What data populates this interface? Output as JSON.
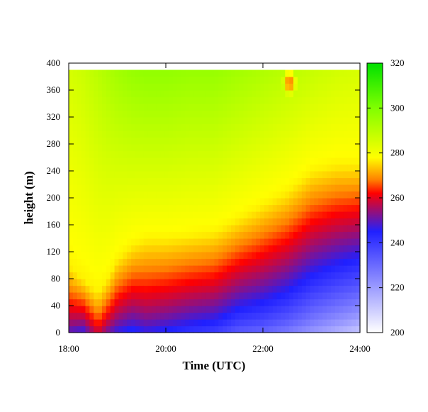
{
  "chart_data": {
    "type": "heatmap",
    "title": "",
    "xlabel": "Time (UTC)",
    "ylabel": "height (m)",
    "x_unit": "hours",
    "xlim": [
      18,
      24
    ],
    "ylim": [
      0,
      400
    ],
    "x_ticks": [
      {
        "value": 18,
        "label": "18:00"
      },
      {
        "value": 20,
        "label": "20:00"
      },
      {
        "value": 22,
        "label": "22:00"
      },
      {
        "value": 24,
        "label": "24:00"
      }
    ],
    "y_ticks": [
      0,
      40,
      80,
      120,
      160,
      200,
      240,
      280,
      320,
      360,
      400
    ],
    "colorbar": {
      "range": [
        200,
        320
      ],
      "ticks": [
        200,
        220,
        240,
        260,
        280,
        300,
        320
      ],
      "colormap": [
        {
          "value": 200,
          "color": "#ffffff"
        },
        {
          "value": 245,
          "color": "#2020ff"
        },
        {
          "value": 262,
          "color": "#ff0000"
        },
        {
          "value": 268,
          "color": "#ff8000"
        },
        {
          "value": 278,
          "color": "#ffff00"
        },
        {
          "value": 300,
          "color": "#80ff00"
        },
        {
          "value": 320,
          "color": "#00e000"
        }
      ]
    },
    "data_top_height": 390,
    "field": {
      "description_levels_m": [
        0,
        20,
        40,
        60,
        80,
        100,
        120,
        140,
        160,
        180,
        200,
        220,
        240,
        260,
        280,
        300,
        320,
        340,
        360,
        380
      ],
      "time_h": [
        18.0,
        18.3,
        18.6,
        18.8,
        19.0,
        19.3,
        19.6,
        20.0,
        20.5,
        21.0,
        21.5,
        22.0,
        22.5,
        23.0,
        23.5,
        24.0
      ],
      "surface_value": [
        248,
        245,
        258,
        250,
        245,
        242,
        245,
        243,
        240,
        238,
        232,
        230,
        226,
        220,
        215,
        210
      ],
      "inversion_top_m": [
        100,
        80,
        60,
        80,
        110,
        130,
        140,
        140,
        145,
        150,
        170,
        190,
        210,
        240,
        250,
        250
      ],
      "upper_value": [
        285,
        287,
        290,
        292,
        294,
        296,
        297,
        297,
        296,
        296,
        294,
        292,
        290,
        288,
        286,
        285
      ]
    },
    "hot_spot": {
      "x": 22.55,
      "y": 372,
      "value": 268
    }
  }
}
